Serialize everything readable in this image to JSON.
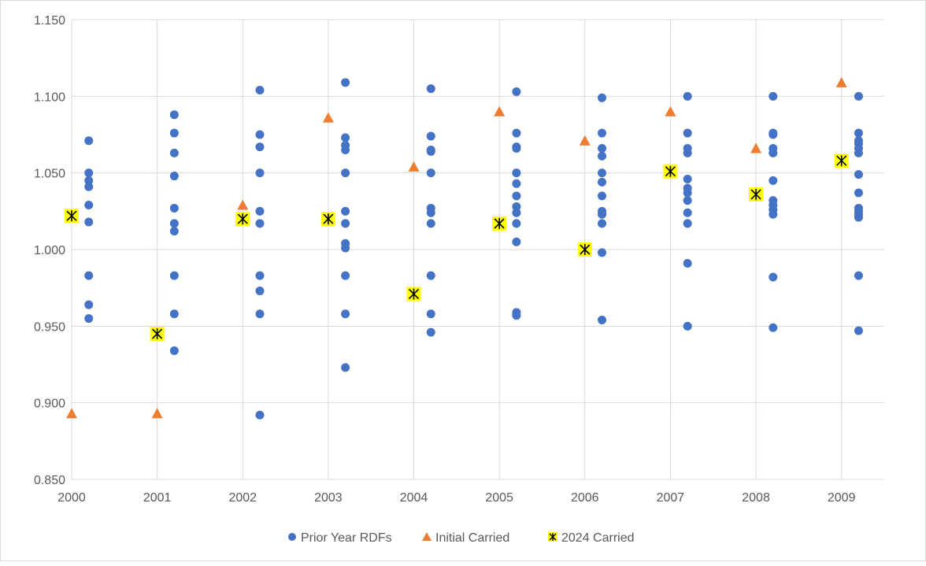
{
  "chart_data": {
    "type": "scatter",
    "title": "",
    "xlabel": "",
    "ylabel": "",
    "xlim": [
      2000,
      2009.5
    ],
    "ylim": [
      0.85,
      1.15
    ],
    "x_ticks": [
      "2000",
      "2001",
      "2002",
      "2003",
      "2004",
      "2005",
      "2006",
      "2007",
      "2008",
      "2009"
    ],
    "y_ticks": [
      "0.850",
      "0.900",
      "0.950",
      "1.000",
      "1.050",
      "1.100",
      "1.150"
    ],
    "grid": true,
    "legend_position": "bottom",
    "colors": {
      "prior": "#4472c4",
      "initial": "#ed7d31",
      "carried_fill": "#ffff00",
      "carried_mark": "#000000",
      "grid": "#d9d9d9"
    },
    "series": [
      {
        "name": "Prior Year RDFs",
        "marker": "circle",
        "x_offset": 0.2,
        "points": {
          "2000": [
            1.071,
            1.05,
            1.045,
            1.041,
            1.029,
            1.018,
            0.983,
            0.964,
            0.955
          ],
          "2001": [
            1.088,
            1.076,
            1.063,
            1.048,
            1.027,
            1.017,
            1.012,
            0.983,
            0.958,
            0.934
          ],
          "2002": [
            1.104,
            1.075,
            1.067,
            1.05,
            1.025,
            1.017,
            0.983,
            0.973,
            0.958,
            0.892
          ],
          "2003": [
            1.109,
            1.073,
            1.068,
            1.065,
            1.05,
            1.025,
            1.017,
            1.004,
            1.001,
            0.983,
            0.958,
            0.923
          ],
          "2004": [
            1.105,
            1.074,
            1.065,
            1.064,
            1.05,
            1.027,
            1.024,
            1.017,
            0.983,
            0.958,
            0.946
          ],
          "2005": [
            1.103,
            1.076,
            1.067,
            1.066,
            1.05,
            1.043,
            1.035,
            1.028,
            1.024,
            1.017,
            1.005,
            0.959,
            0.957
          ],
          "2006": [
            1.099,
            1.076,
            1.066,
            1.061,
            1.05,
            1.044,
            1.035,
            1.025,
            1.023,
            1.017,
            0.998,
            0.954
          ],
          "2007": [
            1.1,
            1.076,
            1.066,
            1.063,
            1.046,
            1.04,
            1.037,
            1.032,
            1.024,
            1.017,
            0.991,
            0.95
          ],
          "2008": [
            1.1,
            1.076,
            1.075,
            1.066,
            1.063,
            1.045,
            1.032,
            1.029,
            1.026,
            1.023,
            0.982,
            0.949
          ],
          "2009": [
            1.1,
            1.076,
            1.071,
            1.069,
            1.066,
            1.063,
            1.049,
            1.037,
            1.027,
            1.025,
            1.023,
            1.021,
            0.983,
            0.947
          ]
        }
      },
      {
        "name": "Initial Carried",
        "marker": "triangle",
        "x": [
          2000,
          2001,
          2002,
          2003,
          2004,
          2005,
          2006,
          2007,
          2008,
          2009
        ],
        "y": [
          0.893,
          0.893,
          1.029,
          1.086,
          1.054,
          1.09,
          1.071,
          1.09,
          1.066,
          1.109
        ]
      },
      {
        "name": "2024 Carried",
        "marker": "x-square",
        "x": [
          2000,
          2001,
          2002,
          2003,
          2004,
          2005,
          2006,
          2007,
          2008,
          2009
        ],
        "y": [
          1.022,
          0.945,
          1.02,
          1.02,
          0.971,
          1.017,
          1.0,
          1.051,
          1.036,
          1.058
        ]
      }
    ]
  }
}
